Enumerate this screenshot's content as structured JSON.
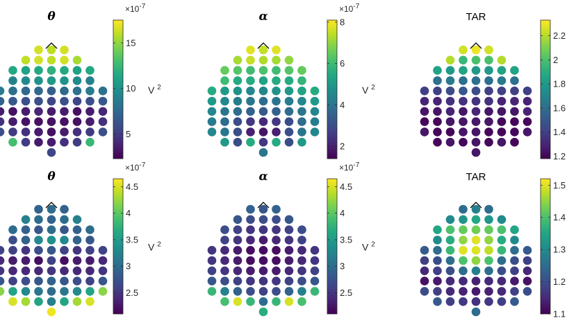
{
  "figure": {
    "background": "#ffffff"
  },
  "chart_data": [
    {
      "type": "heatmap",
      "title": "θ",
      "title_style": "greek",
      "colorbar": {
        "ticks": [
          5,
          10,
          15
        ],
        "range": [
          2.3,
          17.5
        ],
        "exponent": "× 10^-7",
        "exp_base": "×10",
        "exp_power": "-7",
        "unit_base": "V",
        "unit_power": "2"
      },
      "levels": [
        [
          16.5,
          16.0,
          16.5
        ],
        [
          16.0,
          16.5,
          16.0,
          16.5,
          15.5
        ],
        [
          11.5,
          11.0,
          11.5,
          12.0,
          11.5,
          11.0,
          11.5
        ],
        [
          9.0,
          9.5,
          10.0,
          10.5,
          10.0,
          9.5,
          9.0
        ],
        [
          8.5,
          8.0,
          7.5,
          7.5,
          7.0,
          7.5,
          8.0,
          8.5,
          8.0
        ],
        [
          7.0,
          6.5,
          6.0,
          6.0,
          5.5,
          6.0,
          5.5,
          6.0,
          6.5
        ],
        [
          3.5,
          3.0,
          3.5,
          4.0,
          3.5,
          3.5,
          3.0,
          3.5,
          4.0
        ],
        [
          4.5,
          3.5,
          3.0,
          3.0,
          3.0,
          3.0,
          3.0,
          3.5,
          4.5
        ],
        [
          6.0,
          5.0,
          4.5,
          3.5,
          3.0,
          3.5,
          4.5,
          5.0,
          6.0
        ],
        [
          13.0,
          5.0,
          3.5,
          3.5,
          4.5,
          5.0,
          12.5
        ],
        [
          5.5
        ]
      ]
    },
    {
      "type": "heatmap",
      "title": "α",
      "title_style": "greek",
      "colorbar": {
        "ticks": [
          2,
          4,
          6,
          8
        ],
        "range": [
          1.4,
          8.1
        ],
        "exponent": "× 10^-7",
        "exp_base": "×10",
        "exp_power": "-7",
        "unit_base": "V",
        "unit_power": "2"
      },
      "levels": [
        [
          7.8,
          7.5,
          7.8
        ],
        [
          7.2,
          7.5,
          7.3,
          7.2,
          7.0
        ],
        [
          6.5,
          6.3,
          6.0,
          6.2,
          6.0,
          6.3,
          6.5
        ],
        [
          6.0,
          5.5,
          5.5,
          5.3,
          5.5,
          5.5,
          5.8
        ],
        [
          5.5,
          5.0,
          4.8,
          4.5,
          4.5,
          4.8,
          5.0,
          5.3,
          5.5
        ],
        [
          5.0,
          4.5,
          4.2,
          4.0,
          3.8,
          4.0,
          4.2,
          4.5,
          5.0
        ],
        [
          4.5,
          4.0,
          3.8,
          3.5,
          3.3,
          3.5,
          3.8,
          4.0,
          4.5
        ],
        [
          4.2,
          3.8,
          3.0,
          2.5,
          2.2,
          2.5,
          3.0,
          3.8,
          4.2
        ],
        [
          4.5,
          4.0,
          3.0,
          2.0,
          1.8,
          2.0,
          3.0,
          4.0,
          4.5
        ],
        [
          5.0,
          3.0,
          5.5,
          2.5,
          5.5,
          3.0,
          5.0
        ],
        [
          4.0
        ]
      ]
    },
    {
      "type": "heatmap",
      "title": "TAR",
      "title_style": "text",
      "colorbar": {
        "ticks": [
          1.2,
          1.4,
          1.6,
          1.8,
          2,
          2.2
        ],
        "range": [
          1.18,
          2.33
        ],
        "exp_base": "",
        "exp_power": "",
        "unit_base": "",
        "unit_power": ""
      },
      "levels": [
        [
          2.25,
          2.3,
          2.25
        ],
        [
          2.2,
          1.95,
          2.0,
          2.0,
          2.2
        ],
        [
          1.85,
          1.8,
          1.85,
          1.8,
          1.8,
          1.85,
          1.85
        ],
        [
          1.6,
          1.65,
          1.6,
          1.6,
          1.6,
          1.65,
          1.6
        ],
        [
          1.4,
          1.4,
          1.45,
          1.5,
          1.45,
          1.4,
          1.4,
          1.4,
          1.4
        ],
        [
          1.3,
          1.3,
          1.35,
          1.35,
          1.35,
          1.35,
          1.3,
          1.3,
          1.3
        ],
        [
          1.25,
          1.25,
          1.3,
          1.25,
          1.3,
          1.25,
          1.25,
          1.25,
          1.3
        ],
        [
          1.2,
          1.2,
          1.25,
          1.25,
          1.25,
          1.25,
          1.2,
          1.2,
          1.2
        ],
        [
          1.25,
          1.2,
          1.2,
          1.25,
          1.25,
          1.2,
          1.2,
          1.2,
          1.25
        ],
        [
          1.2,
          1.25,
          1.2,
          1.25,
          1.2,
          1.25,
          1.2
        ],
        [
          1.25
        ]
      ]
    },
    {
      "type": "heatmap",
      "title": "θ",
      "title_style": "greek",
      "colorbar": {
        "ticks": [
          2.5,
          3,
          3.5,
          4,
          4.5
        ],
        "range": [
          2.1,
          4.65
        ],
        "exponent": "× 10^-7",
        "exp_base": "×10",
        "exp_power": "-7",
        "unit_base": "V",
        "unit_power": "2"
      },
      "levels": [
        [
          2.9,
          3.0,
          2.9
        ],
        [
          3.2,
          3.0,
          2.9,
          3.0,
          3.2
        ],
        [
          3.0,
          2.9,
          2.8,
          3.0,
          2.8,
          2.9,
          3.0
        ],
        [
          2.7,
          2.9,
          3.3,
          3.4,
          3.3,
          2.9,
          2.8
        ],
        [
          2.6,
          2.6,
          2.5,
          2.7,
          2.8,
          2.6,
          2.5,
          2.6,
          2.6
        ],
        [
          2.4,
          2.3,
          2.3,
          2.2,
          2.6,
          2.2,
          2.3,
          2.3,
          2.4
        ],
        [
          2.5,
          2.4,
          2.4,
          2.4,
          2.5,
          2.4,
          2.4,
          2.4,
          2.5
        ],
        [
          2.8,
          2.6,
          2.7,
          2.8,
          2.9,
          2.8,
          2.7,
          2.6,
          2.8
        ],
        [
          4.2,
          3.6,
          3.3,
          3.1,
          3.0,
          3.1,
          3.3,
          3.6,
          4.2
        ],
        [
          4.5,
          4.3,
          3.6,
          3.2,
          3.6,
          4.3,
          4.5
        ],
        [
          4.6
        ]
      ]
    },
    {
      "type": "heatmap",
      "title": "α",
      "title_style": "greek",
      "colorbar": {
        "ticks": [
          2.5,
          3,
          3.5,
          4,
          4.5
        ],
        "range": [
          2.1,
          4.65
        ],
        "exponent": "× 10^-7",
        "exp_base": "×10",
        "exp_power": "-7",
        "unit_base": "V",
        "unit_power": "2"
      },
      "levels": [
        [
          2.9,
          2.8,
          2.9
        ],
        [
          2.8,
          2.7,
          2.7,
          2.7,
          2.8
        ],
        [
          2.7,
          2.6,
          2.5,
          2.5,
          2.5,
          2.6,
          2.7
        ],
        [
          2.6,
          2.5,
          2.4,
          2.3,
          2.4,
          2.5,
          2.6
        ],
        [
          2.5,
          2.4,
          2.3,
          2.2,
          2.2,
          2.2,
          2.3,
          2.4,
          2.5
        ],
        [
          2.5,
          2.4,
          2.3,
          2.2,
          2.2,
          2.2,
          2.3,
          2.4,
          2.5
        ],
        [
          2.6,
          2.5,
          2.4,
          2.3,
          2.3,
          2.3,
          2.4,
          2.5,
          2.6
        ],
        [
          2.8,
          2.7,
          2.6,
          2.5,
          2.5,
          2.5,
          2.6,
          2.7,
          2.8
        ],
        [
          3.8,
          3.2,
          2.9,
          2.7,
          2.6,
          2.7,
          2.9,
          3.2,
          3.8
        ],
        [
          3.9,
          4.5,
          3.8,
          3.0,
          3.8,
          4.5,
          3.9
        ],
        [
          3.7
        ]
      ]
    },
    {
      "type": "heatmap",
      "title": "TAR",
      "title_style": "text",
      "colorbar": {
        "ticks": [
          1.1,
          1.2,
          1.3,
          1.4,
          1.5
        ],
        "range": [
          1.1,
          1.52
        ],
        "exp_base": "",
        "exp_power": "",
        "unit_base": "",
        "unit_power": ""
      },
      "levels": [
        [
          1.25,
          1.28,
          1.25
        ],
        [
          1.3,
          1.32,
          1.35,
          1.32,
          1.3
        ],
        [
          1.35,
          1.4,
          1.42,
          1.43,
          1.42,
          1.4,
          1.35
        ],
        [
          1.3,
          1.36,
          1.45,
          1.5,
          1.45,
          1.36,
          1.3
        ],
        [
          1.22,
          1.25,
          1.38,
          1.5,
          1.5,
          1.48,
          1.38,
          1.25,
          1.22
        ],
        [
          1.18,
          1.2,
          1.25,
          1.4,
          1.45,
          1.4,
          1.25,
          1.2,
          1.18
        ],
        [
          1.15,
          1.18,
          1.2,
          1.25,
          1.28,
          1.25,
          1.2,
          1.18,
          1.15
        ],
        [
          1.12,
          1.13,
          1.15,
          1.15,
          1.14,
          1.15,
          1.15,
          1.13,
          1.12
        ],
        [
          1.2,
          1.18,
          1.15,
          1.14,
          1.13,
          1.14,
          1.15,
          1.18,
          1.2
        ],
        [
          1.22,
          1.18,
          1.17,
          1.16,
          1.17,
          1.18,
          1.22
        ],
        [
          1.25
        ]
      ]
    }
  ]
}
